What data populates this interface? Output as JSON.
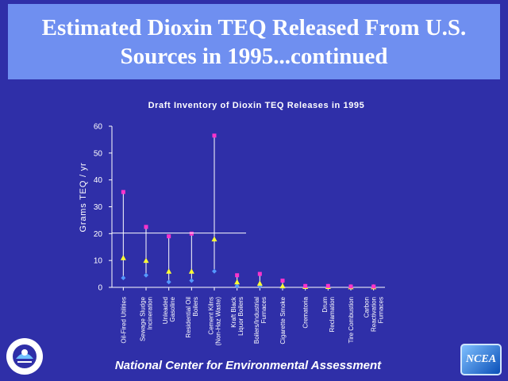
{
  "title": {
    "line1": "Estimated Dioxin TEQ Released From U.S.",
    "line2": "Sources in 1995...continued"
  },
  "footer": "National Center for Environmental Assessment",
  "ncea_logo": "NCEA",
  "epa_seal": {
    "icon": "epa-seal-icon",
    "text": "UNITED STATES ENVIRONMENTAL PROTECTION AGENCY"
  },
  "colors": {
    "background": "#2f2fa8",
    "title_box": "#6f8ff0",
    "high_marker": "#ff33cc",
    "mid_marker": "#ffff33",
    "low_marker": "#5599ff",
    "line": "#ffffff"
  },
  "chart_data": {
    "type": "scatter",
    "title": "Draft Inventory of Dioxin TEQ Releases in 1995",
    "xlabel": "",
    "ylabel": "Grams TEQ / yr",
    "ylim": [
      0,
      60
    ],
    "yticks": [
      0,
      10,
      20,
      30,
      40,
      50,
      60
    ],
    "grid": false,
    "categories": [
      [
        "Oil-Fired Utilities"
      ],
      [
        "Sewage Sludge",
        "Incineration"
      ],
      [
        "Unleaded",
        "Gasoline"
      ],
      [
        "Residential Oil",
        "Boilers"
      ],
      [
        "Cement Kilns",
        "(Non-Haz Waste)"
      ],
      [
        "Kraft Black",
        "Liquor Boilers"
      ],
      [
        "Boilers/Industrial",
        "Furnaces"
      ],
      [
        "Cigarette Smoke"
      ],
      [
        "Crematoria"
      ],
      [
        "Drum",
        "Reclamation"
      ],
      [
        "Tire Combustion"
      ],
      [
        "Carbon",
        "Reactivation",
        "Furnaces"
      ]
    ],
    "high": [
      35.5,
      22.5,
      19,
      20,
      56.5,
      4.5,
      5,
      2.5,
      0.5,
      0.5,
      0.3,
      0.3
    ],
    "mid": [
      11,
      10,
      6,
      6,
      18,
      2,
      1.5,
      0.5,
      0.3,
      0.3,
      0.2,
      0.2
    ],
    "low": [
      3.5,
      4.5,
      2,
      2.5,
      6,
      0.5,
      0.5,
      0.2,
      0.1,
      0.1,
      0.1,
      0.1
    ]
  }
}
